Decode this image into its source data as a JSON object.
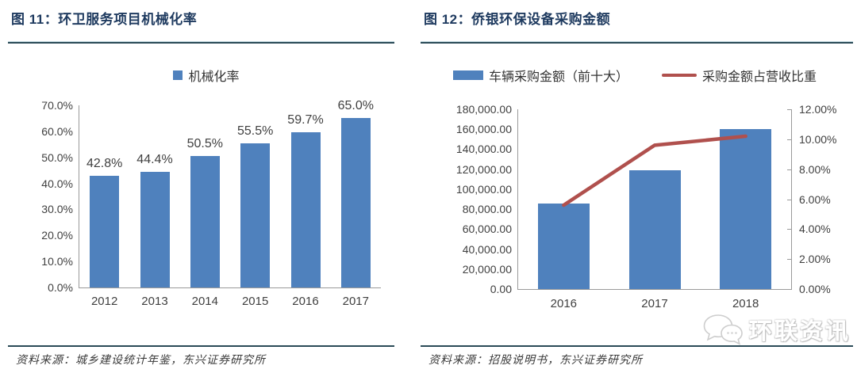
{
  "panels": [
    {
      "title": "图 11：环卫服务项目机械化率",
      "source_label": "资料来源：城乡建设统计年鉴，东兴证券研究所",
      "legend": [
        {
          "label": "机械化率",
          "type": "bar",
          "color": "#4F81BD"
        }
      ]
    },
    {
      "title": "图 12：侨银环保设备采购金额",
      "source_label": "资料来源：招股说明书，东兴证券研究所",
      "legend": [
        {
          "label": "车辆采购金额（前十大）",
          "type": "bar",
          "color": "#4F81BD"
        },
        {
          "label": "采购金额占营收比重",
          "type": "line",
          "color": "#B0504D"
        }
      ]
    }
  ],
  "watermark": {
    "text": "环联资讯",
    "icon": "chat-bubbles-icon"
  },
  "colors": {
    "bar_blue": "#4F81BD",
    "line_red": "#B0504D",
    "title_navy": "#1E3A5F",
    "rule_dark": "#2A4A57",
    "axis_gray": "#9a9a9a",
    "label_gray": "#404040"
  },
  "chart_data": [
    {
      "type": "bar",
      "title": "环卫服务项目机械化率",
      "legend": [
        "机械化率"
      ],
      "categories": [
        "2012",
        "2013",
        "2014",
        "2015",
        "2016",
        "2017"
      ],
      "values": [
        42.8,
        44.4,
        50.5,
        55.5,
        59.7,
        65.0
      ],
      "data_labels": [
        "42.8%",
        "44.4%",
        "50.5%",
        "55.5%",
        "59.7%",
        "65.0%"
      ],
      "xlabel": "",
      "ylabel": "",
      "ylim": [
        0,
        70
      ],
      "ytick_step": 10,
      "ytick_format": "percent1",
      "grid": false,
      "legend_position": "top",
      "bar_color": "#4F81BD"
    },
    {
      "type": "bar+line",
      "title": "侨银环保设备采购金额",
      "categories": [
        "2016",
        "2017",
        "2018"
      ],
      "series": [
        {
          "name": "车辆采购金额（前十大）",
          "type": "bar",
          "axis": "left",
          "color": "#4F81BD",
          "values": [
            85600,
            118900,
            160000
          ]
        },
        {
          "name": "采购金额占营收比重",
          "type": "line",
          "axis": "right",
          "color": "#B0504D",
          "values": [
            5.6,
            9.6,
            10.2
          ]
        }
      ],
      "left_axis": {
        "min": 0,
        "max": 180000,
        "step": 20000,
        "format": "thousands2"
      },
      "right_axis": {
        "min": 0,
        "max": 12,
        "step": 2,
        "format": "percent2"
      },
      "xlabel": "",
      "grid": false,
      "legend_position": "top"
    }
  ]
}
